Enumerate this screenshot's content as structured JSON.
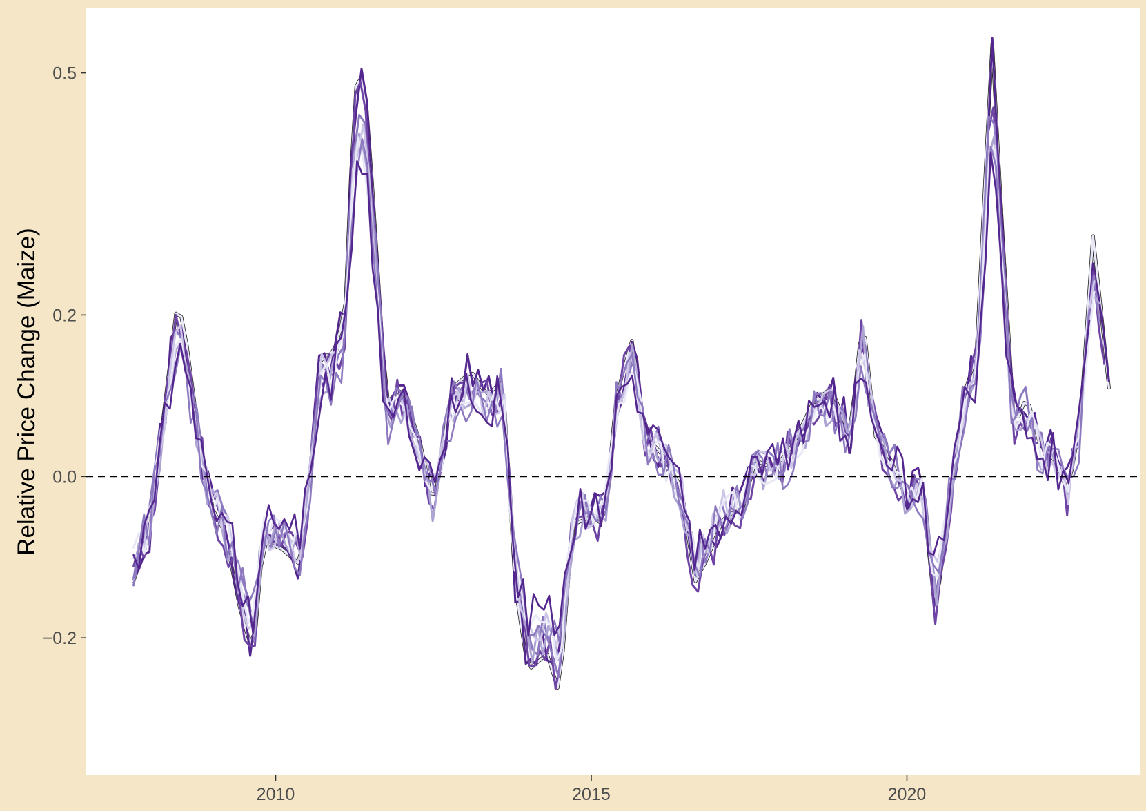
{
  "chart_data": {
    "type": "line",
    "title": "",
    "xlabel": "",
    "ylabel": "Relative Price Change (Maize)",
    "xlim": [
      2007.0,
      2023.7
    ],
    "ylim": [
      -0.37,
      0.58
    ],
    "x_ticks": [
      2010,
      2015,
      2020
    ],
    "x_tick_labels": [
      "2010",
      "2015",
      "2020"
    ],
    "y_ticks": [
      -0.2,
      0.0,
      0.2,
      0.5
    ],
    "y_tick_labels": [
      "−0.2",
      "0.0",
      "0.2",
      "0.5"
    ],
    "reference_line": {
      "y": 0.0,
      "style": "dashed",
      "color": "#000000"
    },
    "grid": false,
    "legend": "none",
    "background": {
      "panel": "#ffffff",
      "outer": "#f5e6c8"
    },
    "palette": [
      "#e8e8f6",
      "#cdc6e6",
      "#ada4d4",
      "#8d79bf",
      "#6e45a4",
      "#54278f",
      "#111111"
    ],
    "anchors": {
      "x": [
        2007.75,
        2008.0,
        2008.2,
        2008.45,
        2008.6,
        2008.8,
        2009.0,
        2009.2,
        2009.45,
        2009.65,
        2009.8,
        2010.1,
        2010.4,
        2010.55,
        2010.7,
        2010.9,
        2011.1,
        2011.25,
        2011.4,
        2011.55,
        2011.75,
        2012.0,
        2012.3,
        2012.5,
        2012.8,
        2013.1,
        2013.35,
        2013.6,
        2013.8,
        2014.0,
        2014.3,
        2014.5,
        2014.7,
        2015.0,
        2015.2,
        2015.4,
        2015.65,
        2015.85,
        2016.1,
        2016.4,
        2016.65,
        2016.85,
        2017.1,
        2017.4,
        2017.6,
        2017.9,
        2018.2,
        2018.5,
        2018.8,
        2019.1,
        2019.3,
        2019.5,
        2019.75,
        2020.0,
        2020.25,
        2020.45,
        2020.65,
        2020.9,
        2021.1,
        2021.35,
        2021.5,
        2021.7,
        2021.9,
        2022.1,
        2022.35,
        2022.55,
        2022.75,
        2022.95,
        2023.2
      ],
      "y": [
        -0.13,
        -0.07,
        0.06,
        0.22,
        0.16,
        0.04,
        -0.04,
        -0.07,
        -0.17,
        -0.22,
        -0.08,
        -0.09,
        -0.11,
        0.0,
        0.15,
        0.15,
        0.2,
        0.48,
        0.5,
        0.34,
        0.09,
        0.11,
        0.04,
        -0.04,
        0.11,
        0.13,
        0.1,
        0.12,
        -0.14,
        -0.24,
        -0.22,
        -0.27,
        -0.06,
        -0.05,
        -0.06,
        0.1,
        0.17,
        0.05,
        0.03,
        -0.01,
        -0.13,
        -0.1,
        -0.05,
        -0.04,
        0.02,
        0.01,
        0.04,
        0.09,
        0.11,
        0.05,
        0.2,
        0.05,
        0.02,
        -0.03,
        -0.02,
        -0.17,
        -0.05,
        0.1,
        0.15,
        0.54,
        0.32,
        0.06,
        0.1,
        0.04,
        0.02,
        -0.02,
        0.07,
        0.3,
        0.11
      ]
    },
    "series": [
      {
        "color": "#111111",
        "width": 5.0,
        "noise": 0.0,
        "offset": 0.0,
        "scale": 1.0,
        "end": 1.0
      },
      {
        "color": "#e8e8f6",
        "width": 3.5,
        "noise": 0.0,
        "offset": 0.0,
        "scale": 1.0,
        "end": 1.0
      },
      {
        "color": "#54278f",
        "width": 3.0,
        "noise": 0.03,
        "offset": 0.003,
        "scale": 0.97,
        "end": 1.0
      },
      {
        "color": "#6e45a4",
        "width": 3.0,
        "noise": 0.03,
        "offset": -0.004,
        "scale": 0.94,
        "end": 0.995
      },
      {
        "color": "#8d79bf",
        "width": 3.0,
        "noise": 0.026,
        "offset": 0.006,
        "scale": 0.9,
        "end": 0.99
      },
      {
        "color": "#ada4d4",
        "width": 3.0,
        "noise": 0.024,
        "offset": -0.006,
        "scale": 0.87,
        "end": 0.99
      },
      {
        "color": "#cdc6e6",
        "width": 3.0,
        "noise": 0.024,
        "offset": 0.002,
        "scale": 0.84,
        "end": 0.985
      },
      {
        "color": "#e8e8f6",
        "width": 3.0,
        "noise": 0.022,
        "offset": 0.0,
        "scale": 0.82,
        "end": 0.985
      },
      {
        "color": "#8d79bf",
        "width": 2.6,
        "noise": 0.034,
        "offset": -0.002,
        "scale": 0.8,
        "end": 0.98
      },
      {
        "color": "#54278f",
        "width": 2.6,
        "noise": 0.034,
        "offset": 0.004,
        "scale": 0.78,
        "end": 0.98
      }
    ]
  }
}
